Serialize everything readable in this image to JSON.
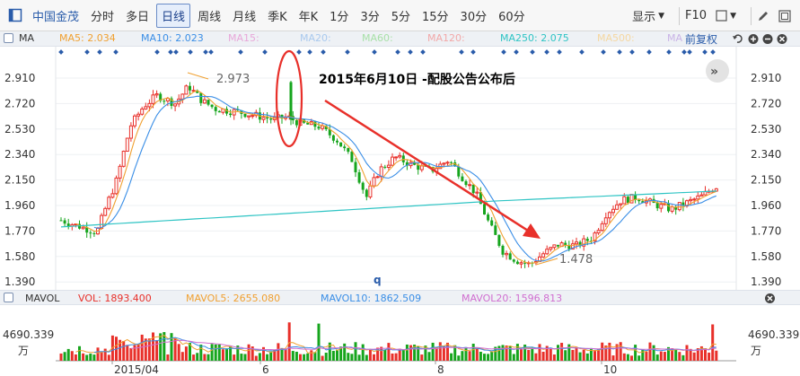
{
  "toolbar": {
    "stock_name": "中国金茂",
    "periods": [
      "分时",
      "多日",
      "日线",
      "周线",
      "月线",
      "季K",
      "年K",
      "1分",
      "3分",
      "5分",
      "15分",
      "30分",
      "60分"
    ],
    "active_period": "日线",
    "display_label": "显示",
    "f10_label": "F10",
    "icons": [
      "panel-toggle-icon",
      "display-dropdown-icon",
      "draw-icon",
      "shape-icon",
      "fullscreen-icon"
    ]
  },
  "ma_bar": {
    "title": "MA",
    "items": [
      {
        "label": "MA5: 2.034",
        "color": "#f0a030"
      },
      {
        "label": "MA10: 2.023",
        "color": "#3a8ee6"
      },
      {
        "label": "MA15:",
        "color": "#e8a7d9"
      },
      {
        "label": "MA20:",
        "color": "#a9c9ee"
      },
      {
        "label": "MA60:",
        "color": "#a8e0a8"
      },
      {
        "label": "MA120:",
        "color": "#f2a8a8"
      },
      {
        "label": "MA250: 2.075",
        "color": "#2ec4c4"
      },
      {
        "label": "MA500:",
        "color": "#f5d7a0"
      },
      {
        "label": "MA",
        "color": "#c9b3e6"
      }
    ],
    "adjust_label": "前复权",
    "controls": [
      "undo-icon",
      "zoom-in-icon",
      "zoom-out-icon",
      "close-icon"
    ]
  },
  "price_chart": {
    "y_ticks": [
      "2.910",
      "2.720",
      "2.530",
      "2.340",
      "2.150",
      "1.960",
      "1.770",
      "1.580",
      "1.390"
    ],
    "high_label": "2.973",
    "low_label": "1.478",
    "marker_label": "q",
    "annotation": "2015年6月10日 -配股公告公布后",
    "colors": {
      "up": "#e8302a",
      "down": "#16a51d",
      "arrow": "#e8302a",
      "highlight": "#e8302a",
      "ma250": "#2ec4c4",
      "ma10": "#3a8ee6",
      "ma5": "#f0a030"
    }
  },
  "vol_bar": {
    "title": "MAVOL",
    "items": [
      {
        "label": "VOL: 1893.400",
        "color": "#e8302a"
      },
      {
        "label": "MAVOL5: 2655.080",
        "color": "#f0a030"
      },
      {
        "label": "MAVOL10: 1862.509",
        "color": "#3a8ee6"
      },
      {
        "label": "MAVOL20: 1596.813",
        "color": "#d06ed0"
      }
    ],
    "close_icon": "close-icon"
  },
  "vol_chart": {
    "y_tick": "4690.339",
    "unit": "万",
    "x_labels": [
      "2015/04",
      "6",
      "8",
      "10"
    ]
  }
}
